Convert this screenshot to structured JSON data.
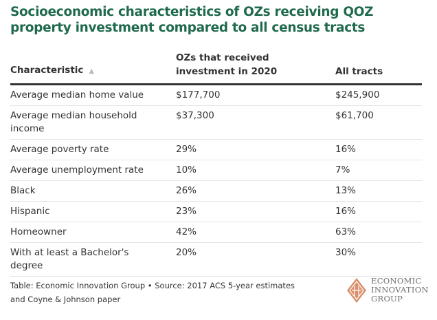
{
  "title": "Socioeconomic characteristics of OZs receiving QOZ property investment compared to all census tracts",
  "chart_data": {
    "type": "table",
    "columns": [
      "Characteristic",
      "OZs that received investment in 2020",
      "All tracts"
    ],
    "sort_indicator": "ascending",
    "rows": [
      [
        "Average median home value",
        "$177,700",
        "$245,900"
      ],
      [
        "Average median household income",
        "$37,300",
        "$61,700"
      ],
      [
        "Average poverty rate",
        "29%",
        "16%"
      ],
      [
        "Average unemployment rate",
        "10%",
        "7%"
      ],
      [
        "Black",
        "26%",
        "13%"
      ],
      [
        "Hispanic",
        "23%",
        "16%"
      ],
      [
        "Homeowner",
        "42%",
        "63%"
      ],
      [
        "With at least a Bachelor's degree",
        "20%",
        "30%"
      ]
    ]
  },
  "footer": "Table: Economic Innovation Group • Source: 2017 ACS 5-year estimates and Coyne & Johnson paper",
  "logo": {
    "lines": [
      "ECONOMIC",
      "INNOVATION",
      "GROUP"
    ],
    "color": "#d9906a"
  },
  "colors": {
    "title": "#1f6a4d",
    "text": "#333333"
  }
}
